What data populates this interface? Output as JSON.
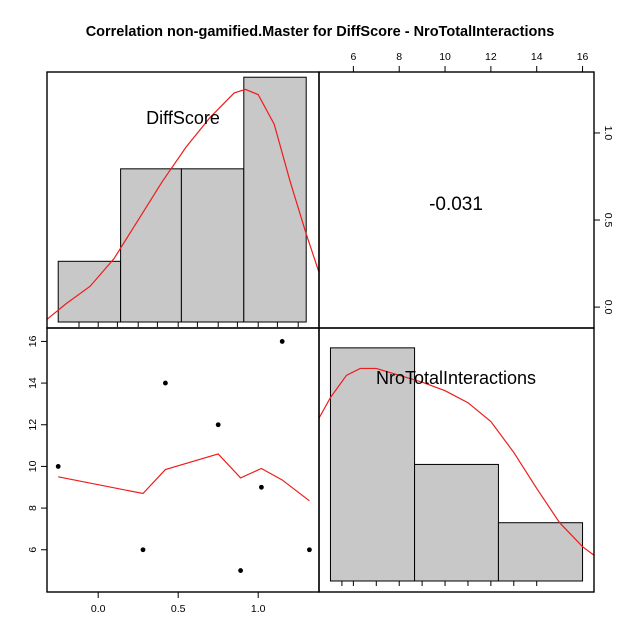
{
  "title": "Correlation non-gamified.Master for DiffScore - NroTotalInteractions",
  "colors": {
    "bar_fill": "#c8c8c8",
    "curve": "#ee1c1c",
    "points": "#000000"
  },
  "chart_data": [
    {
      "panel": "top-left",
      "type": "bar",
      "subtype": "histogram-with-density",
      "variable_label": "DiffScore",
      "bins": [
        {
          "from": -0.25,
          "to": 0.14,
          "density": 0.263
        },
        {
          "from": 0.14,
          "to": 0.52,
          "density": 0.794
        },
        {
          "from": 0.52,
          "to": 0.91,
          "density": 0.794
        },
        {
          "from": 0.91,
          "to": 1.3,
          "density": 1.32
        }
      ],
      "density_curve": {
        "x": [
          -0.32,
          -0.2,
          -0.05,
          0.1,
          0.25,
          0.4,
          0.55,
          0.7,
          0.85,
          0.92,
          1.0,
          1.1,
          1.2,
          1.3,
          1.38
        ],
        "y": [
          -0.07,
          0.02,
          0.12,
          0.28,
          0.5,
          0.72,
          0.92,
          1.09,
          1.23,
          1.25,
          1.22,
          1.05,
          0.72,
          0.42,
          0.2
        ]
      },
      "right_axis": {
        "ticks": [
          0.0,
          0.5,
          1.0
        ],
        "labels": [
          "0.0",
          "0.5",
          "1.0"
        ],
        "ylim": [
          -0.12,
          1.35
        ]
      },
      "xlim": [
        -0.32,
        1.38
      ]
    },
    {
      "panel": "top-right",
      "type": "table",
      "correlation_label": "-0.031",
      "top_axis": {
        "ticks": [
          6,
          8,
          10,
          12,
          14,
          16
        ],
        "labels": [
          "6",
          "8",
          "10",
          "12",
          "14",
          "16"
        ]
      }
    },
    {
      "panel": "bottom-left",
      "type": "scatter",
      "x": [
        -0.25,
        0.28,
        0.42,
        0.75,
        0.89,
        1.02,
        1.15,
        1.32
      ],
      "y": [
        10,
        6,
        14,
        12,
        5,
        9,
        16,
        6
      ],
      "smooth_line": {
        "x": [
          -0.25,
          0.28,
          0.42,
          0.75,
          0.89,
          1.02,
          1.15,
          1.32
        ],
        "y": [
          9.5,
          8.7,
          9.85,
          10.6,
          9.45,
          9.9,
          9.35,
          8.35
        ]
      },
      "xlim": [
        -0.32,
        1.38
      ],
      "ylim": [
        4.5,
        16.5
      ],
      "bottom_axis": {
        "ticks": [
          0.0,
          0.5,
          1.0
        ],
        "labels": [
          "0.0",
          "0.5",
          "1.0"
        ]
      },
      "left_axis": {
        "ticks": [
          6,
          8,
          10,
          12,
          14,
          16
        ],
        "labels": [
          "6",
          "8",
          "10",
          "12",
          "14",
          "16"
        ]
      }
    },
    {
      "panel": "bottom-right",
      "type": "bar",
      "subtype": "histogram-with-density",
      "variable_label": "NroTotalInteractions",
      "bins": [
        {
          "from": 5.0,
          "to": 8.67,
          "density": 0.136
        },
        {
          "from": 8.67,
          "to": 12.33,
          "density": 0.068
        },
        {
          "from": 12.33,
          "to": 16.0,
          "density": 0.034
        }
      ],
      "density_curve": {
        "x": [
          4.5,
          5.0,
          5.7,
          6.3,
          7.0,
          8.0,
          9.0,
          10.0,
          11.0,
          12.0,
          13.0,
          14.0,
          15.0,
          16.0,
          16.5
        ],
        "y": [
          0.095,
          0.107,
          0.12,
          0.124,
          0.124,
          0.12,
          0.116,
          0.111,
          0.104,
          0.093,
          0.075,
          0.054,
          0.034,
          0.02,
          0.015
        ]
      },
      "xlim": [
        4.5,
        16.5
      ],
      "ylim": [
        0,
        0.14
      ]
    }
  ]
}
